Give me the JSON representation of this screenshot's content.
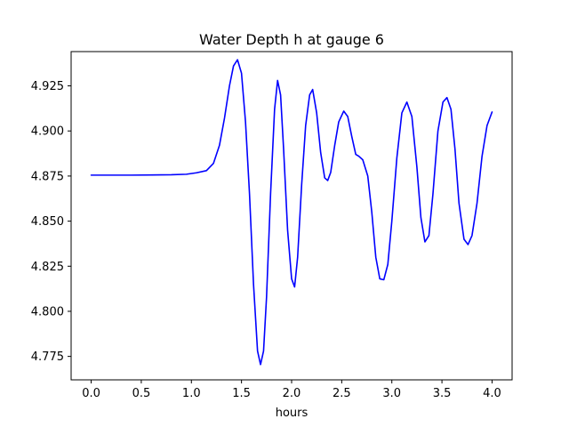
{
  "chart_data": {
    "type": "line",
    "title": "Water Depth h at gauge 6",
    "xlabel": "hours",
    "ylabel": "",
    "xlim": [
      -0.2,
      4.2
    ],
    "ylim": [
      4.762,
      4.944
    ],
    "xticks": [
      0.0,
      0.5,
      1.0,
      1.5,
      2.0,
      2.5,
      3.0,
      3.5,
      4.0
    ],
    "xtick_labels": [
      "0.0",
      "0.5",
      "1.0",
      "1.5",
      "2.0",
      "2.5",
      "3.0",
      "3.5",
      "4.0"
    ],
    "yticks": [
      4.775,
      4.8,
      4.825,
      4.85,
      4.875,
      4.9,
      4.925
    ],
    "ytick_labels": [
      "4.775",
      "4.800",
      "4.825",
      "4.850",
      "4.875",
      "4.900",
      "4.925"
    ],
    "grid": false,
    "series": [
      {
        "color": "#0000ff",
        "points": [
          [
            0.0,
            4.8755
          ],
          [
            0.2,
            4.8755
          ],
          [
            0.4,
            4.8755
          ],
          [
            0.6,
            4.8756
          ],
          [
            0.8,
            4.8757
          ],
          [
            0.95,
            4.876
          ],
          [
            1.05,
            4.8768
          ],
          [
            1.15,
            4.878
          ],
          [
            1.22,
            4.882
          ],
          [
            1.28,
            4.892
          ],
          [
            1.33,
            4.907
          ],
          [
            1.38,
            4.925
          ],
          [
            1.42,
            4.936
          ],
          [
            1.46,
            4.9395
          ],
          [
            1.5,
            4.932
          ],
          [
            1.54,
            4.905
          ],
          [
            1.58,
            4.865
          ],
          [
            1.62,
            4.815
          ],
          [
            1.66,
            4.778
          ],
          [
            1.69,
            4.7705
          ],
          [
            1.72,
            4.778
          ],
          [
            1.75,
            4.808
          ],
          [
            1.79,
            4.865
          ],
          [
            1.83,
            4.912
          ],
          [
            1.86,
            4.928
          ],
          [
            1.89,
            4.92
          ],
          [
            1.92,
            4.89
          ],
          [
            1.96,
            4.845
          ],
          [
            2.0,
            4.818
          ],
          [
            2.03,
            4.8135
          ],
          [
            2.06,
            4.83
          ],
          [
            2.1,
            4.87
          ],
          [
            2.14,
            4.903
          ],
          [
            2.18,
            4.92
          ],
          [
            2.21,
            4.923
          ],
          [
            2.25,
            4.91
          ],
          [
            2.29,
            4.888
          ],
          [
            2.33,
            4.874
          ],
          [
            2.36,
            4.8725
          ],
          [
            2.39,
            4.877
          ],
          [
            2.43,
            4.892
          ],
          [
            2.47,
            4.905
          ],
          [
            2.52,
            4.911
          ],
          [
            2.56,
            4.908
          ],
          [
            2.6,
            4.897
          ],
          [
            2.64,
            4.887
          ],
          [
            2.67,
            4.886
          ],
          [
            2.71,
            4.884
          ],
          [
            2.76,
            4.875
          ],
          [
            2.8,
            4.855
          ],
          [
            2.84,
            4.83
          ],
          [
            2.88,
            4.818
          ],
          [
            2.92,
            4.8175
          ],
          [
            2.96,
            4.826
          ],
          [
            3.0,
            4.85
          ],
          [
            3.05,
            4.885
          ],
          [
            3.1,
            4.91
          ],
          [
            3.15,
            4.916
          ],
          [
            3.2,
            4.908
          ],
          [
            3.25,
            4.88
          ],
          [
            3.29,
            4.852
          ],
          [
            3.33,
            4.8385
          ],
          [
            3.37,
            4.842
          ],
          [
            3.41,
            4.865
          ],
          [
            3.46,
            4.9
          ],
          [
            3.51,
            4.916
          ],
          [
            3.55,
            4.9185
          ],
          [
            3.59,
            4.912
          ],
          [
            3.63,
            4.89
          ],
          [
            3.67,
            4.86
          ],
          [
            3.72,
            4.84
          ],
          [
            3.76,
            4.837
          ],
          [
            3.8,
            4.842
          ],
          [
            3.85,
            4.86
          ],
          [
            3.9,
            4.886
          ],
          [
            3.95,
            4.903
          ],
          [
            4.0,
            4.9105
          ]
        ]
      }
    ]
  }
}
